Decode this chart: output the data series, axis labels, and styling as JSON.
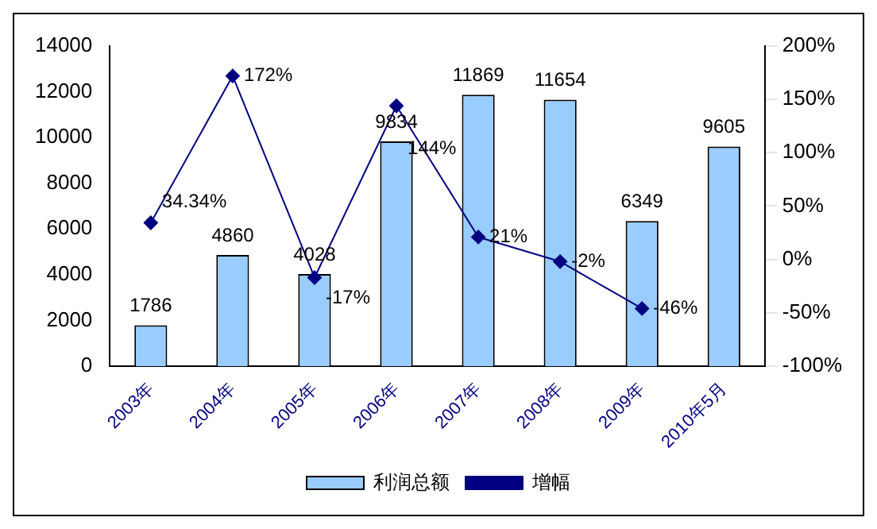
{
  "chart_data": {
    "type": "bar",
    "categories": [
      "2003年",
      "2004年",
      "2005年",
      "2006年",
      "2007年",
      "2008年",
      "2009年",
      "2010年5月"
    ],
    "series": [
      {
        "name": "利润总额",
        "color": "#99ccff",
        "values": [
          1786,
          4860,
          4028,
          9834,
          11869,
          11654,
          6349,
          9605
        ],
        "value_labels": [
          "1786",
          "4860",
          "4028",
          "9834",
          "11869",
          "11654",
          "6349",
          "9605"
        ]
      },
      {
        "name": "增幅",
        "type": "line",
        "axis": "y2",
        "color": "#000080",
        "marker": "diamond",
        "values": [
          34.34,
          172,
          -17,
          144,
          21,
          -2,
          -46,
          null
        ],
        "value_labels": [
          "34.34%",
          "172%",
          "-17%",
          "144%",
          "21%",
          "-2%",
          "-46%",
          null
        ]
      }
    ],
    "ylim": [
      0,
      14000
    ],
    "yticks": [
      0,
      2000,
      4000,
      6000,
      8000,
      10000,
      12000,
      14000
    ],
    "y2lim": [
      -100,
      200
    ],
    "y2ticks": [
      {
        "value": -100,
        "label": "-100%"
      },
      {
        "value": -50,
        "label": "-50%"
      },
      {
        "value": 0,
        "label": "0%"
      },
      {
        "value": 50,
        "label": "50%"
      },
      {
        "value": 100,
        "label": "100%"
      },
      {
        "value": 150,
        "label": "150%"
      },
      {
        "value": 200,
        "label": "200%"
      }
    ],
    "grid": false,
    "legend": "bottom"
  }
}
